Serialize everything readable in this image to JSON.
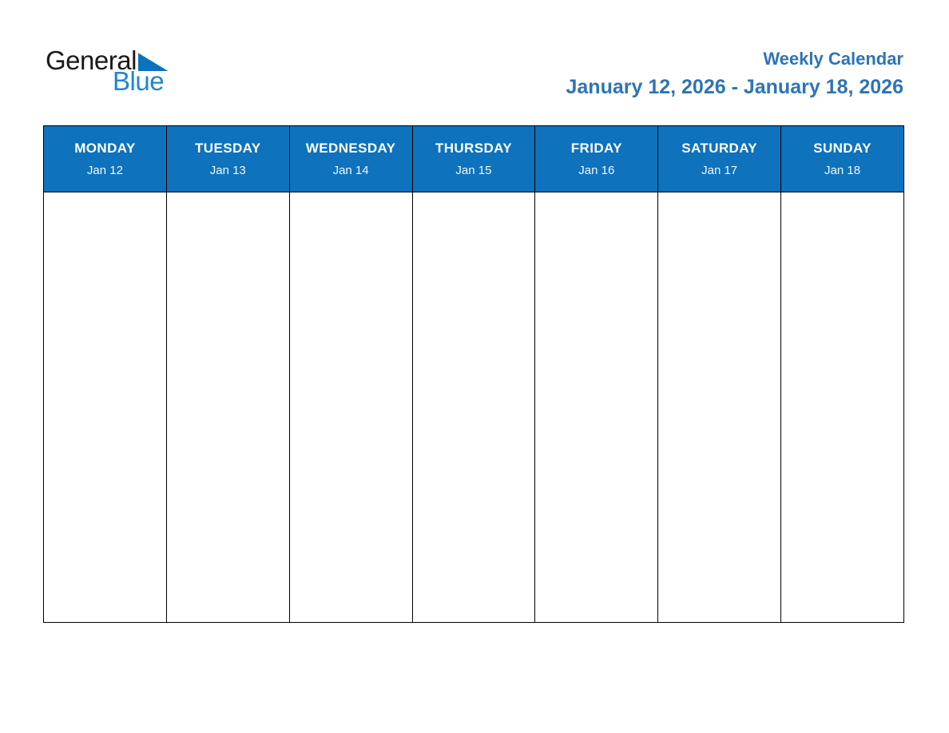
{
  "logo": {
    "word_general": "General",
    "word_blue": "Blue"
  },
  "header": {
    "title": "Weekly Calendar",
    "date_range": "January 12, 2026 - January 18, 2026"
  },
  "calendar": {
    "days": [
      {
        "name": "MONDAY",
        "date": "Jan 12"
      },
      {
        "name": "TUESDAY",
        "date": "Jan 13"
      },
      {
        "name": "WEDNESDAY",
        "date": "Jan 14"
      },
      {
        "name": "THURSDAY",
        "date": "Jan 15"
      },
      {
        "name": "FRIDAY",
        "date": "Jan 16"
      },
      {
        "name": "SATURDAY",
        "date": "Jan 17"
      },
      {
        "name": "SUNDAY",
        "date": "Jan 18"
      }
    ]
  },
  "colors": {
    "header_blue": "#0e72bd",
    "title_blue": "#2e74b5",
    "logo_blue": "#1e87d3",
    "logo_triangle_blue": "#0d72be",
    "logo_black": "#1a1a1a",
    "border": "#000000",
    "background": "#ffffff"
  }
}
